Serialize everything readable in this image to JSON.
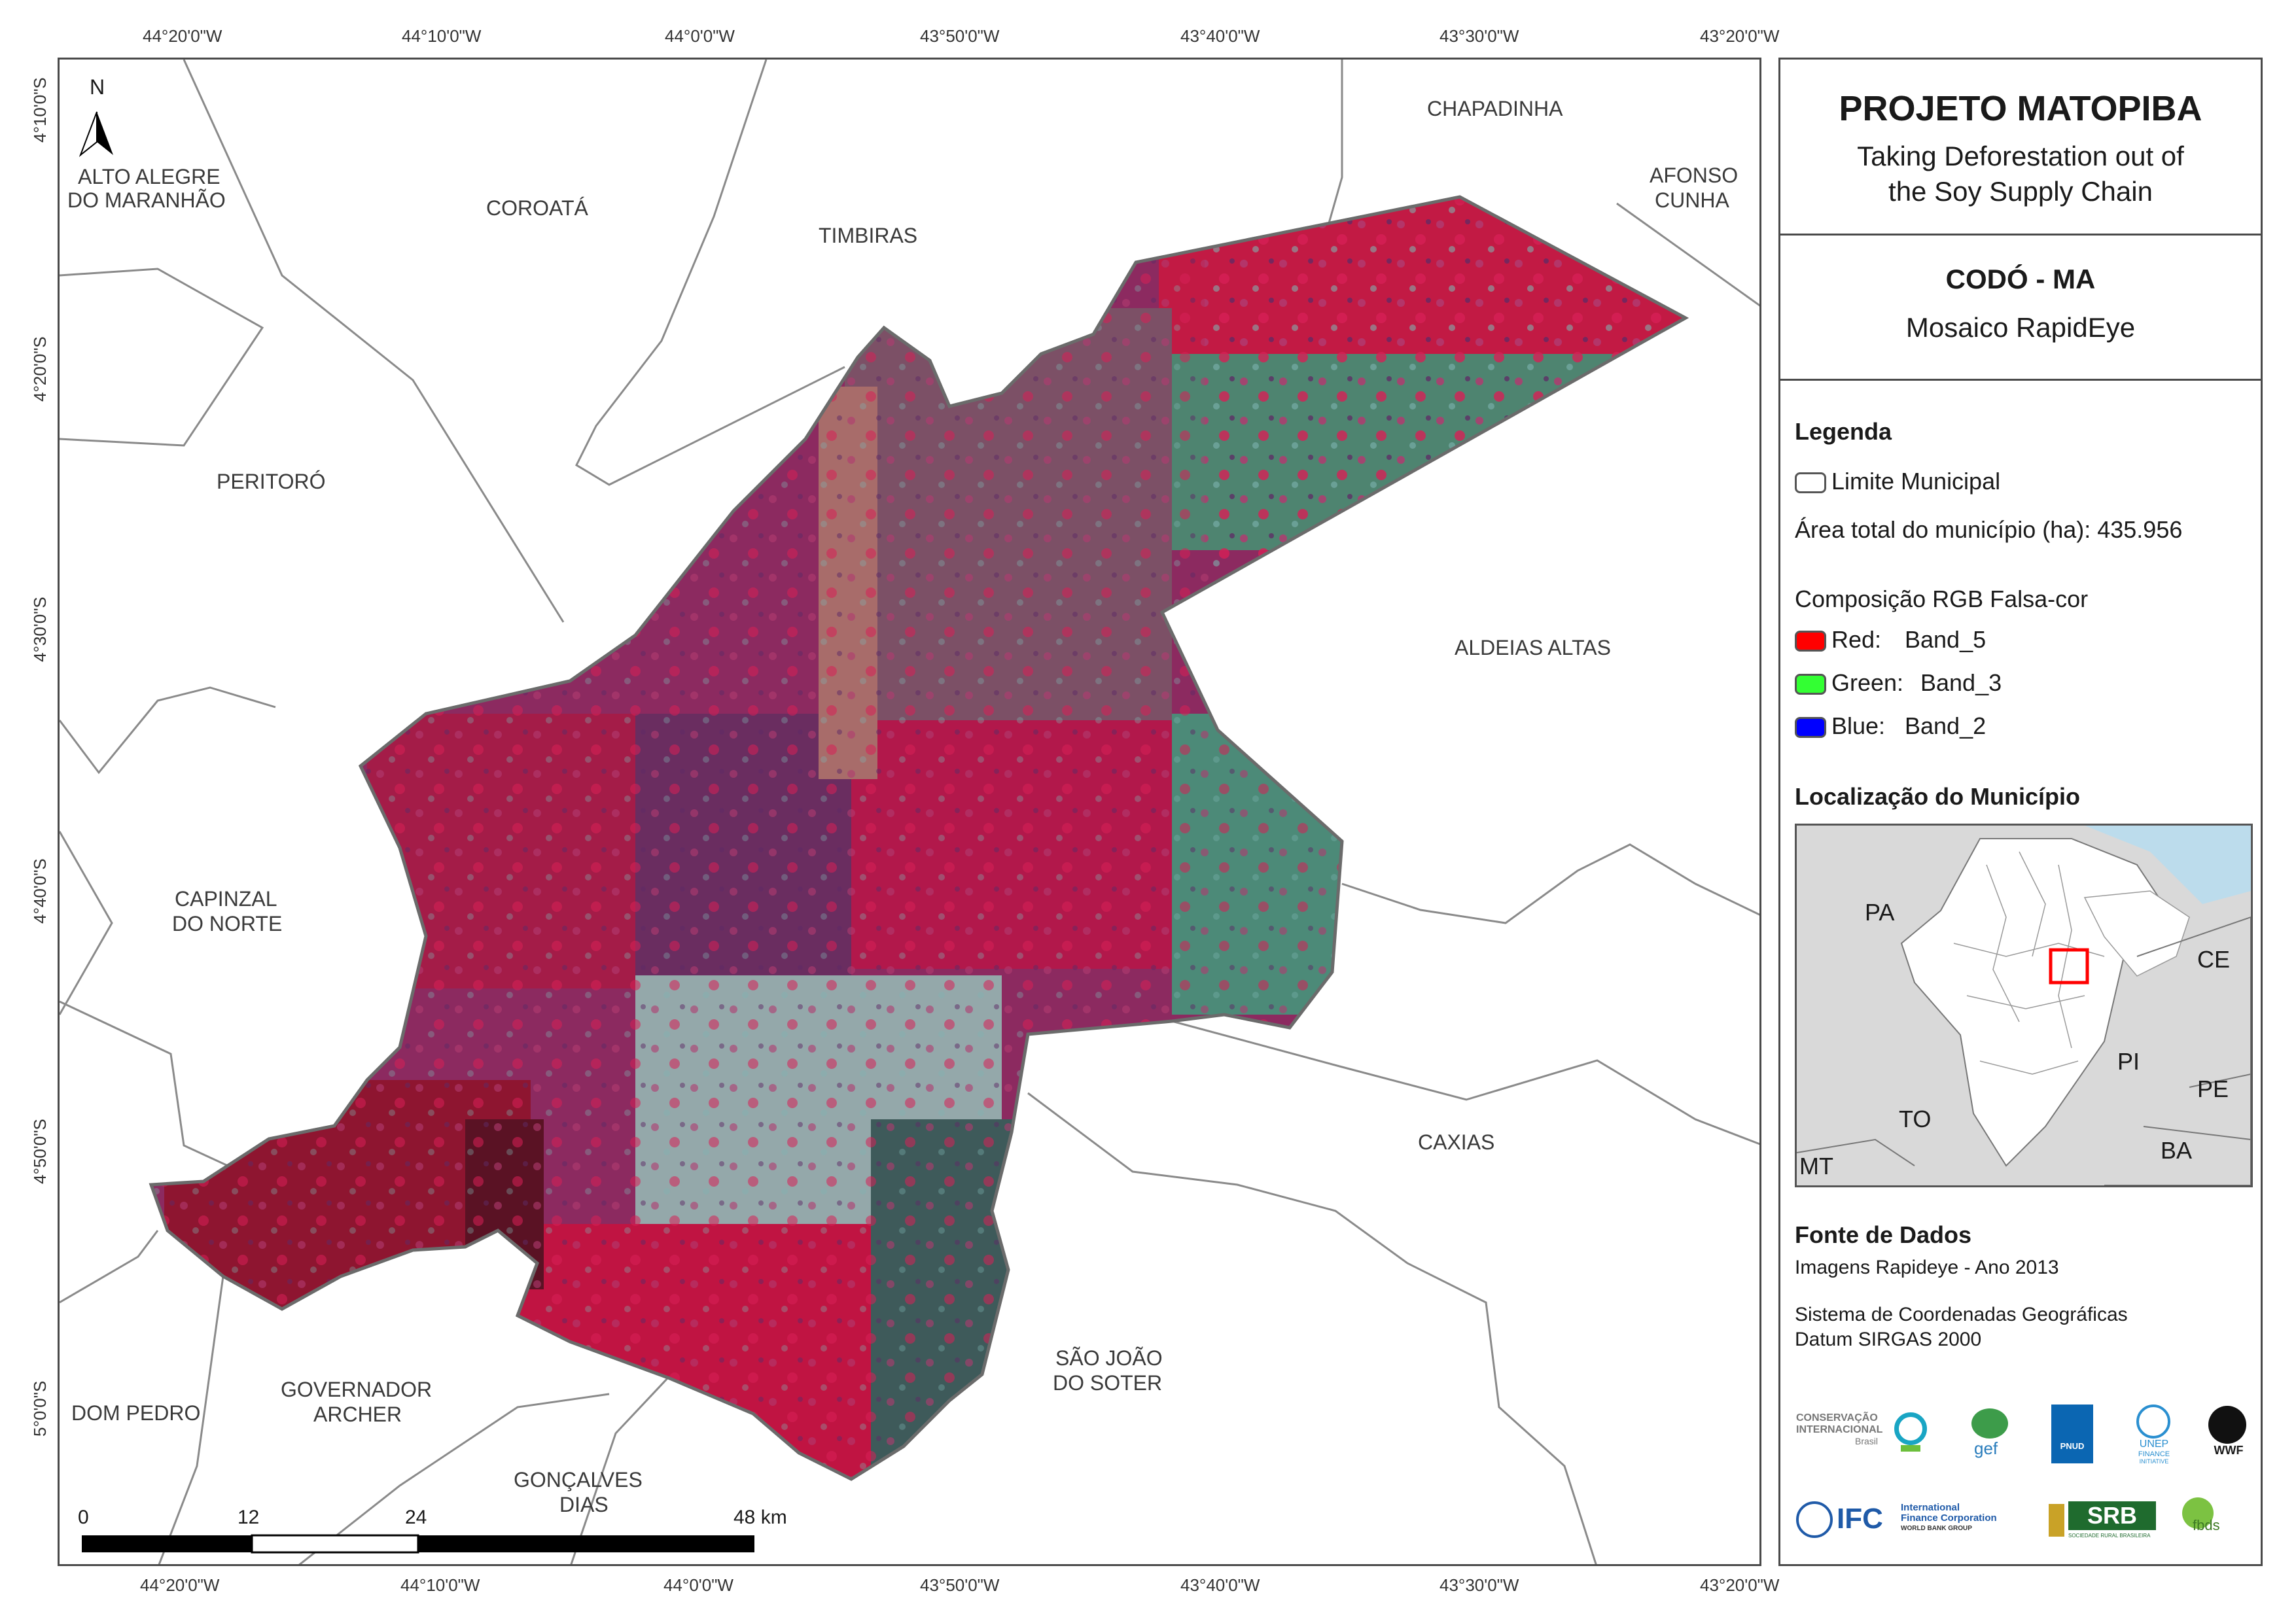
{
  "panel": {
    "title": "PROJETO MATOPIBA",
    "subtitle_line1": "Taking Deforestation out of",
    "subtitle_line2": "the Soy Supply Chain",
    "place": "CODÓ - MA",
    "product": "Mosaico RapidEye",
    "legend_heading": "Legenda",
    "legend_boundary": "Limite Municipal",
    "area_text": "Área total do município (ha): 435.956",
    "rgb_heading": "Composição RGB Falsa-cor",
    "bands": [
      {
        "channel": "Red:",
        "band": "Band_5",
        "color": "#ff0000"
      },
      {
        "channel": "Green:",
        "band": "Band_3",
        "color": "#33ff33"
      },
      {
        "channel": "Blue:",
        "band": "Band_2",
        "color": "#0000ff"
      }
    ],
    "location_heading": "Localização do Município",
    "inset_states": [
      "PA",
      "CE",
      "PI",
      "PE",
      "TO",
      "BA",
      "MT"
    ],
    "source_heading": "Fonte de Dados",
    "source_line": "Imagens Rapideye - Ano 2013",
    "crs_line1": "Sistema de Coordenadas Geográficas",
    "crs_line2": "Datum SIRGAS 2000",
    "logos": {
      "ci_line1": "CONSERVAÇÃO",
      "ci_line2": "INTERNACIONAL",
      "ci_line3": "Brasil",
      "gef": "gef",
      "pnud": "PNUD",
      "unep_line1": "UNEP",
      "unep_line2": "FINANCE",
      "unep_line3": "INITIATIVE",
      "wwf": "WWF",
      "ifc": "IFC",
      "ifc_line1": "International",
      "ifc_line2": "Finance Corporation",
      "ifc_line3": "WORLD BANK GROUP",
      "srb": "SRB",
      "srb_sub": "SOCIEDADE RURAL BRASILEIRA",
      "fbds": "fbds"
    }
  },
  "map": {
    "north_label": "N",
    "lon_ticks": [
      "44°20'0\"W",
      "44°10'0\"W",
      "44°0'0\"W",
      "43°50'0\"W",
      "43°40'0\"W",
      "43°30'0\"W",
      "43°20'0\"W"
    ],
    "lat_ticks": [
      "4°10'0\"S",
      "4°20'0\"S",
      "4°30'0\"S",
      "4°40'0\"S",
      "4°50'0\"S",
      "5°0'0\"S"
    ],
    "municipalities": {
      "chapadinha": "CHAPADINHA",
      "afonso_1": "AFONSO",
      "afonso_2": "CUNHA",
      "alto_1": "ALTO ALEGRE",
      "alto_2": "DO MARANHÃO",
      "coroata": "COROATÁ",
      "timbiras": "TIMBIRAS",
      "peritoro": "PERITORÓ",
      "aldeias": "ALDEIAS ALTAS",
      "capinzal_1": "CAPINZAL",
      "capinzal_2": "DO NORTE",
      "caxias": "CAXIAS",
      "sjoao_1": "SÃO JOÃO",
      "sjoao_2": "DO SOTER",
      "dom_pedro": "DOM PEDRO",
      "gov_1": "GOVERNADOR",
      "gov_2": "ARCHER",
      "goncalves_1": "GONÇALVES",
      "goncalves_2": "DIAS"
    },
    "scale": [
      "0",
      "12",
      "24",
      "48 km"
    ]
  }
}
